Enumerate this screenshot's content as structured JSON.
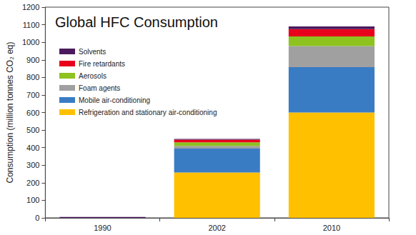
{
  "chart_data": {
    "type": "bar",
    "title": "Global HFC Consumption",
    "y_label": "Consumption (million tonnes CO₂ eq)",
    "categories": [
      "1990",
      "2002",
      "2010"
    ],
    "stacked": true,
    "legend": "top-left",
    "grid": false,
    "ylim": [
      0,
      1200
    ],
    "yticks": [
      0,
      100,
      200,
      300,
      400,
      500,
      600,
      700,
      800,
      900,
      1000,
      1100,
      1200
    ],
    "series": [
      {
        "name": "Refrigeration and stationary air-conditioning",
        "color": "#ffc000",
        "values": [
          0,
          258,
          600
        ]
      },
      {
        "name": "Mobile air-conditioning",
        "color": "#3a7cc4",
        "values": [
          0,
          137,
          258
        ]
      },
      {
        "name": "Foam agents",
        "color": "#a0a0a0",
        "values": [
          0,
          15,
          120
        ]
      },
      {
        "name": "Aerosols",
        "color": "#8dc21f",
        "values": [
          0,
          20,
          55
        ]
      },
      {
        "name": "Fire retardants",
        "color": "#e8001c",
        "values": [
          0,
          15,
          42
        ]
      },
      {
        "name": "Solvents",
        "color": "#4b1a5e",
        "values": [
          5,
          5,
          15
        ]
      }
    ]
  }
}
